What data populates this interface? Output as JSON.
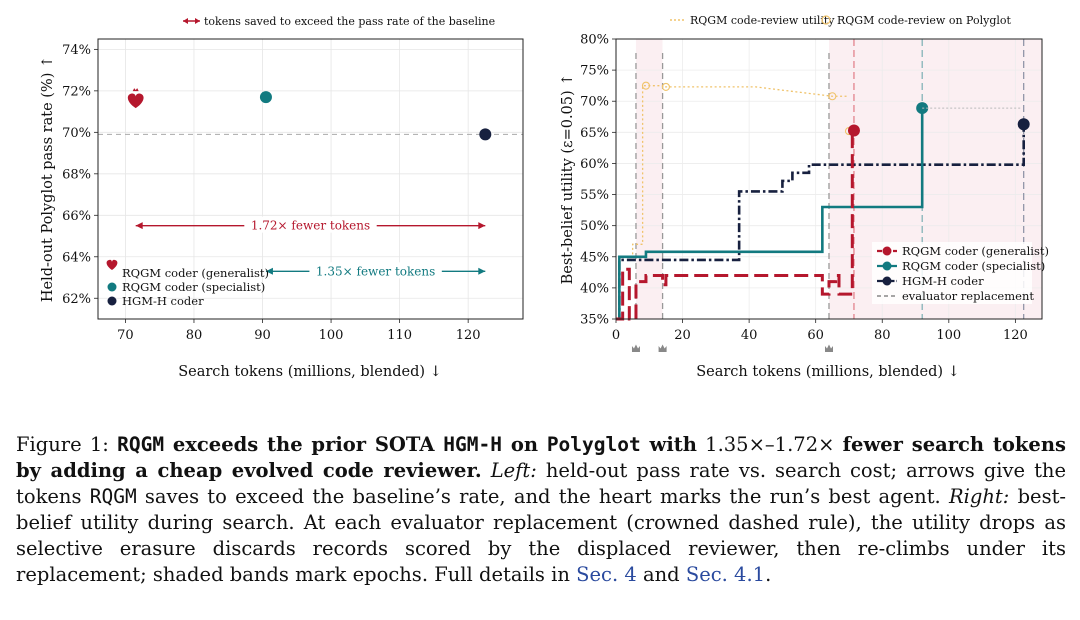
{
  "chart_data": [
    {
      "type": "scatter",
      "top_legend": "tokens saved to exceed the pass rate of the baseline",
      "xlabel": "Search tokens (millions, blended) ↓",
      "ylabel": "Held-out Polyglot pass rate (%) ↑",
      "xlim": [
        66,
        128
      ],
      "ylim": [
        61,
        74.5
      ],
      "x_ticks": [
        70,
        80,
        90,
        100,
        110,
        120
      ],
      "y_ticks": [
        62,
        64,
        66,
        68,
        70,
        72,
        74
      ],
      "y_tick_suffix": "%",
      "grid": true,
      "baseline_y": 69.9,
      "legend_position": "lower-left",
      "series": [
        {
          "name": "RQGM coder (generalist)",
          "color": "#b5172d",
          "marker": "heart",
          "points": [
            {
              "x": 71.5,
              "y": 71.6
            }
          ]
        },
        {
          "name": "RQGM coder (specialist)",
          "color": "#127a80",
          "marker": "circle",
          "points": [
            {
              "x": 90.5,
              "y": 71.7
            }
          ]
        },
        {
          "name": "HGM-H coder",
          "color": "#17203f",
          "marker": "circle",
          "points": [
            {
              "x": 122.5,
              "y": 69.9
            }
          ]
        }
      ],
      "annotations": [
        {
          "text": "1.72× fewer tokens",
          "x_from": 71.5,
          "x_to": 122.5,
          "y": 65.5,
          "color": "#b5172d"
        },
        {
          "text": "1.35× fewer tokens",
          "x_from": 90.5,
          "x_to": 122.5,
          "y": 63.3,
          "color": "#127a80"
        }
      ]
    },
    {
      "type": "line",
      "top_legend": [
        "RQGM code-review utility",
        "RQGM code-review on Polyglot"
      ],
      "xlabel": "Search tokens (millions, blended) ↓",
      "ylabel": "Best-belief utility (ε=0.05) ↑",
      "xlim": [
        0,
        128
      ],
      "ylim": [
        35,
        80
      ],
      "x_ticks": [
        0,
        20,
        40,
        60,
        80,
        100,
        120
      ],
      "y_ticks": [
        35,
        40,
        45,
        50,
        55,
        60,
        65,
        70,
        75,
        80
      ],
      "y_tick_suffix": "%",
      "grid": true,
      "legend_position": "lower-right",
      "evaluator_replacements": [
        6,
        14,
        64
      ],
      "series": [
        {
          "name": "RQGM coder (generalist)",
          "color": "#b5172d",
          "style": "dashed",
          "steps": [
            [
              0,
              35
            ],
            [
              2,
              35
            ],
            [
              2,
              43
            ],
            [
              4,
              43
            ],
            [
              4,
              35
            ],
            [
              6,
              35
            ],
            [
              6,
              41
            ],
            [
              9,
              41
            ],
            [
              9,
              42
            ],
            [
              14,
              42
            ],
            [
              14,
              40.5
            ],
            [
              15,
              40.5
            ],
            [
              15,
              42
            ],
            [
              62,
              42
            ],
            [
              62,
              39
            ],
            [
              64,
              39
            ],
            [
              64,
              41
            ],
            [
              66,
              41
            ],
            [
              66,
              42
            ],
            [
              67,
              42
            ],
            [
              67,
              39
            ],
            [
              71,
              39
            ],
            [
              71,
              65.3
            ]
          ],
          "end_point": {
            "x": 71.5,
            "y": 65.3
          }
        },
        {
          "name": "RQGM coder (specialist)",
          "color": "#127a80",
          "style": "solid",
          "steps": [
            [
              0,
              35
            ],
            [
              1,
              35
            ],
            [
              1,
              45
            ],
            [
              9,
              45
            ],
            [
              9,
              45.8
            ],
            [
              62,
              45.8
            ],
            [
              62,
              53
            ],
            [
              92,
              53
            ],
            [
              92,
              68.9
            ]
          ],
          "end_point": {
            "x": 92,
            "y": 68.9
          }
        },
        {
          "name": "HGM-H coder",
          "color": "#17203f",
          "style": "dashdot",
          "steps": [
            [
              0,
              35
            ],
            [
              1,
              35
            ],
            [
              1,
              44.5
            ],
            [
              37,
              44.5
            ],
            [
              37,
              55.5
            ],
            [
              50,
              55.5
            ],
            [
              50,
              57.2
            ],
            [
              53,
              57.2
            ],
            [
              53,
              58.5
            ],
            [
              58,
              58.5
            ],
            [
              58,
              59.8
            ],
            [
              122.5,
              59.8
            ],
            [
              122.5,
              66.3
            ]
          ],
          "end_point": {
            "x": 122.5,
            "y": 66.3
          }
        },
        {
          "name": "evaluator replacement",
          "color": "#888888",
          "style": "dashed-rule"
        }
      ],
      "review_utility": [
        [
          3,
          45
        ],
        [
          5,
          45
        ],
        [
          5,
          47
        ],
        [
          8,
          47
        ],
        [
          8,
          72.5
        ],
        [
          14,
          72.5
        ],
        [
          14,
          72.3
        ],
        [
          42,
          72.3
        ],
        [
          65,
          70.8
        ],
        [
          70,
          70.8
        ]
      ],
      "review_polyglot_points": [
        [
          9,
          72.5
        ],
        [
          15,
          72.3
        ],
        [
          65,
          70.8
        ],
        [
          70,
          65.2
        ]
      ]
    }
  ],
  "caption": {
    "label": "Figure 1:",
    "bold_1": "RQGM",
    "bold_2": "exceeds the prior SOTA",
    "bold_3": "HGM-H",
    "bold_4": "on",
    "bold_5": "Polyglot",
    "bold_6": "with",
    "range": "1.35×–1.72×",
    "bold_7": "fewer search tokens by adding a cheap evolved code reviewer.",
    "left": "Left:",
    "text_1": "held-out pass rate vs. search cost; arrows give the tokens",
    "rqgm": "RQGM",
    "text_2": "saves to exceed the baseline’s rate, and the heart marks the run’s best agent.",
    "right": "Right:",
    "text_3": "best-belief utility during search. At each evaluator replacement (crowned dashed rule), the utility drops as selective erasure discards records scored by the displaced reviewer, then re-climbs under its replacement; shaded bands mark epochs. Full details in",
    "ref_1": "Sec. 4",
    "and": "and",
    "ref_2": "Sec. 4.1",
    "end": "."
  }
}
